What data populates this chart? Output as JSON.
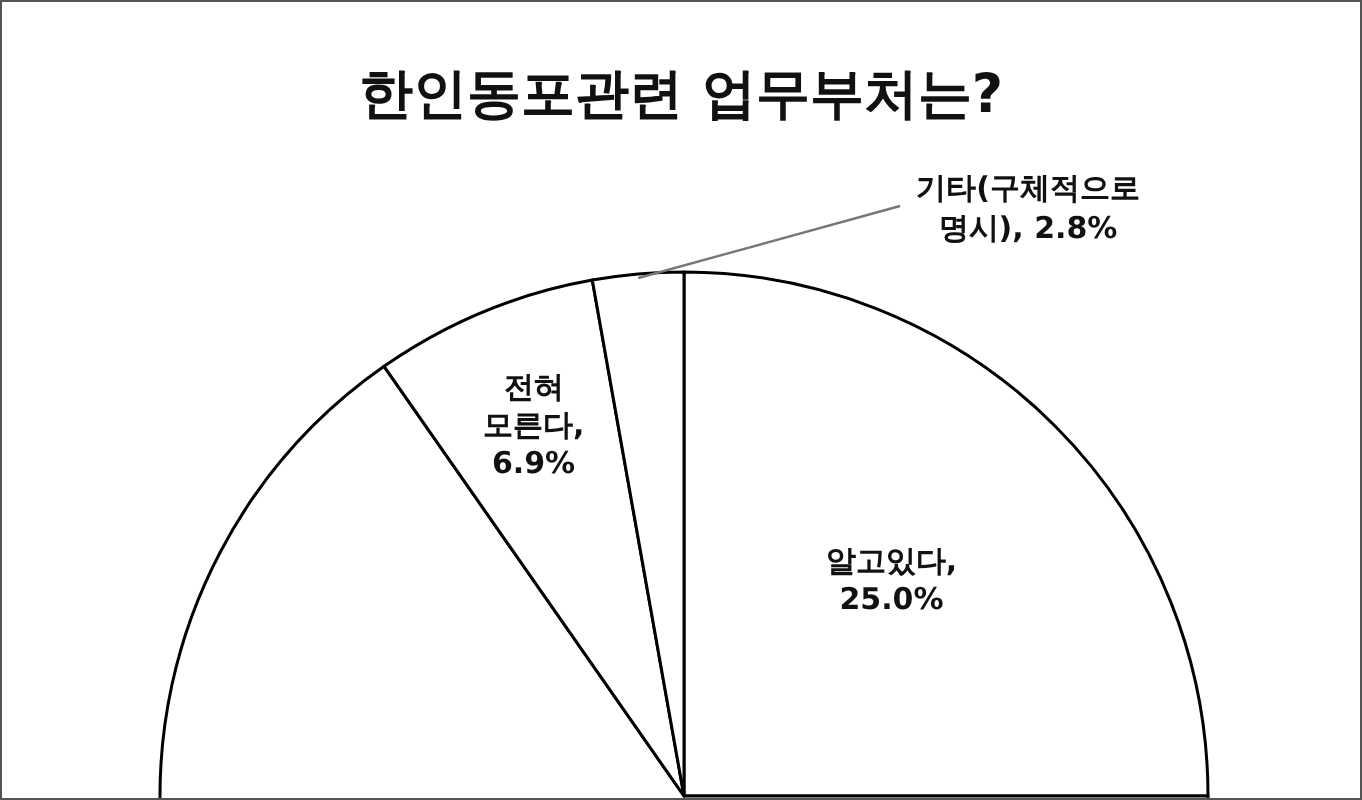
{
  "chart_data": {
    "type": "pie",
    "title": "한인동포관련 업무부처는?",
    "categories": [
      "알고있다",
      null,
      "전혀 모른다",
      "기타(구체적으로 명시)"
    ],
    "values": [
      25.0,
      65.3,
      6.9,
      2.8
    ],
    "value_labels": [
      ", 25.0%",
      null,
      ", 6.9%",
      ", 2.8%"
    ],
    "colors": [
      "#ffffff",
      "#ffffff",
      "#ffffff",
      "#ffffff"
    ]
  }
}
